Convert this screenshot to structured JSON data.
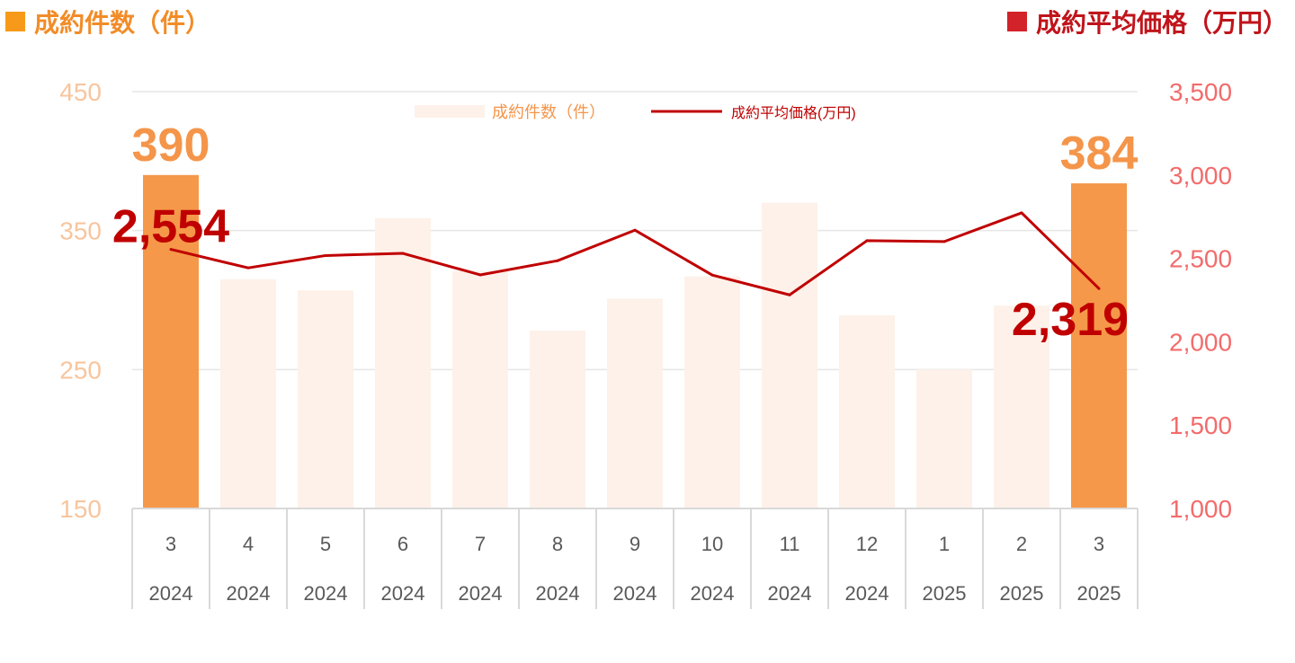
{
  "header": {
    "left_title": "成約件数（件）",
    "right_title": "成約平均価格（万円）"
  },
  "colors": {
    "bar_muted": "#fdf1e9",
    "bar_highlight": "#f5984a",
    "line": "#c00000",
    "left_axis": "#f7c59e",
    "right_axis": "#f36b6b",
    "left_title_square": "#f79a1a",
    "right_title_square": "#d2232a",
    "left_title_text": "#f28c28",
    "right_title_text": "#c0141b",
    "grid": "#e6e6e6",
    "axis_text": "#595959",
    "value_label_orange": "#f4954a",
    "value_label_red": "#c00000"
  },
  "chart_data": {
    "type": "bar",
    "categories": [
      "3",
      "4",
      "5",
      "6",
      "7",
      "8",
      "9",
      "10",
      "11",
      "12",
      "1",
      "2",
      "3"
    ],
    "years": [
      "2024",
      "2024",
      "2024",
      "2024",
      "2024",
      "2024",
      "2024",
      "2024",
      "2024",
      "2024",
      "2025",
      "2025",
      "2025"
    ],
    "series": [
      {
        "name": "成約件数（件）",
        "type": "bar",
        "axis": "left",
        "values": [
          390,
          315,
          307,
          359,
          321,
          278,
          301,
          317,
          370,
          289,
          250,
          296,
          384
        ]
      },
      {
        "name": "成約平均価格(万円)",
        "type": "line",
        "axis": "right",
        "values": [
          2554,
          2443,
          2517,
          2530,
          2401,
          2486,
          2669,
          2400,
          2281,
          2606,
          2601,
          2773,
          2319
        ]
      }
    ],
    "highlight_indices": [
      0,
      12
    ],
    "data_labels": [
      {
        "text": "390",
        "series": 0,
        "index": 0
      },
      {
        "text": "384",
        "series": 0,
        "index": 12
      },
      {
        "text": "2,554",
        "series": 1,
        "index": 0
      },
      {
        "text": "2,319",
        "series": 1,
        "index": 12
      }
    ],
    "y_left": {
      "min": 150,
      "max": 450,
      "ticks": [
        "150",
        "250",
        "350",
        "450"
      ]
    },
    "y_right": {
      "min": 1000,
      "max": 3500,
      "ticks": [
        "1,000",
        "1,500",
        "2,000",
        "2,500",
        "3,000",
        "3,500"
      ]
    },
    "legend": {
      "position": "top-center",
      "items": [
        "成約件数（件）",
        "成約平均価格(万円)"
      ]
    },
    "grid": true
  }
}
